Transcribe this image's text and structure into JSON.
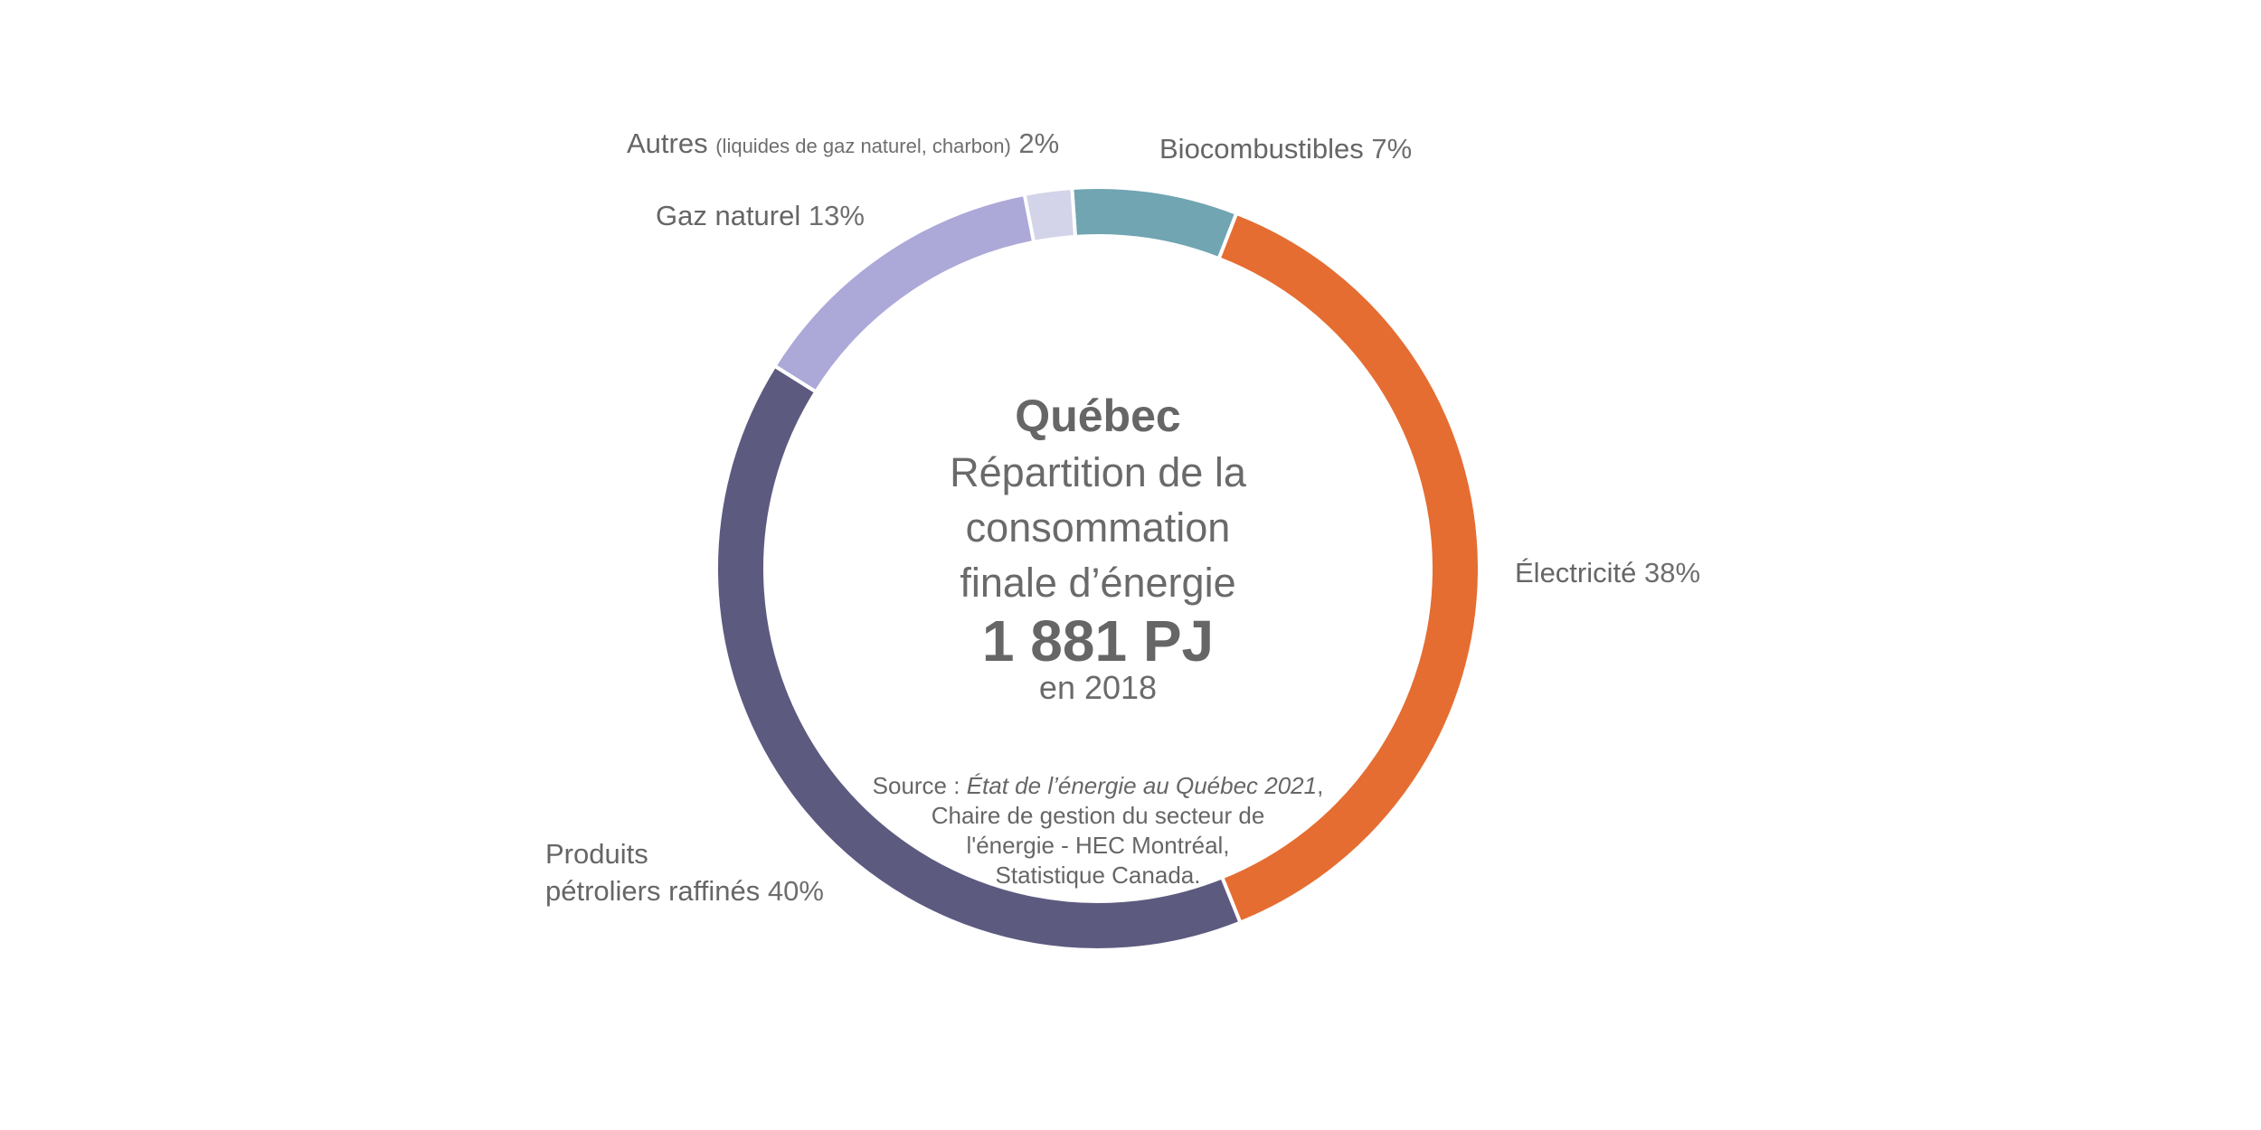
{
  "chart_data": {
    "type": "pie",
    "variant": "donut",
    "title": "Québec",
    "subtitle": "Répartition de la consommation finale d’énergie",
    "total": "1 881 PJ",
    "year": "en 2018",
    "start_angle_deg": -3.9,
    "direction": "clockwise",
    "categories": [
      "Biocombustibles",
      "Électricité",
      "Produits pétroliers raffinés",
      "Gaz naturel",
      "Autres (liquides de gaz naturel, charbon)"
    ],
    "values": [
      7,
      38,
      40,
      13,
      2
    ],
    "unit": "%",
    "colors": [
      "#70a5b1",
      "#e56d32",
      "#5d5a80",
      "#aca8d8",
      "#d3d3e9"
    ],
    "legend_position": "labels around donut"
  },
  "labels": {
    "bio": {
      "name": "Biocombustibles",
      "pct": "7%"
    },
    "elec": {
      "name": "Électricité",
      "pct": "38%"
    },
    "petrol": {
      "name_line1": "Produits",
      "name_line2": "pétroliers raffinés",
      "pct": "40%"
    },
    "gaz": {
      "name": "Gaz naturel",
      "pct": "13%"
    },
    "autres": {
      "name": "Autres",
      "detail": "(liquides de gaz naturel, charbon)",
      "pct": "2%"
    }
  },
  "center": {
    "title": "Québec",
    "line1": "Répartition de la",
    "line2": "consommation",
    "line3": "finale d’énergie",
    "total": "1 881 PJ",
    "year": "en 2018"
  },
  "source": {
    "prefix": "Source : ",
    "title": "État de l’énergie au Québec 2021",
    "suffix": ",",
    "line2": "Chaire de gestion du secteur de",
    "line3": "l'énergie - HEC Montréal,",
    "line4": "Statistique Canada."
  }
}
